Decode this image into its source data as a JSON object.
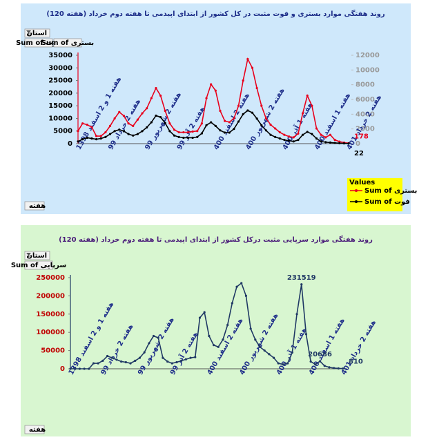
{
  "chart_data": [
    {
      "type": "line",
      "title": "روند هفتگی موارد بستری و فوت مثبت در کل کشور از ابتدای اپیدمی تا هفته دوم خرداد (هفته 120)",
      "title_color": "#1f2f8a",
      "background": "#cfe8fb",
      "categories": [
        "هفته 1 و 2 اسفند 1398",
        null,
        null,
        null,
        null,
        null,
        null,
        "هفته 2 خرداد 99",
        null,
        null,
        null,
        null,
        null,
        null,
        null,
        "هفته 2 شهریور 99",
        null,
        null,
        null,
        null,
        null,
        null,
        "هفته 2 آذر 99",
        null,
        null,
        null,
        null,
        null,
        null,
        null,
        "هفته 2 اسفند 400",
        null,
        null,
        null,
        null,
        null,
        null,
        "هفته 2 شهریور 400",
        null,
        null,
        null,
        null,
        null,
        null,
        null,
        "هفته 1 آذر 400",
        null,
        null,
        null,
        null,
        null,
        null,
        "هفته 1 اسفند 400",
        null,
        null,
        null,
        null,
        null,
        null,
        "هفته 2 خرداد 401"
      ],
      "series": [
        {
          "name": "Sum of بستری",
          "color": "#e8001c",
          "data_labels": [
            59
          ],
          "values": [
            5000,
            8000,
            7500,
            6500,
            3000,
            3000,
            4500,
            7000,
            10000,
            12500,
            11000,
            8000,
            7000,
            9500,
            12000,
            14000,
            18000,
            22000,
            19000,
            13000,
            8000,
            5500,
            4500,
            4500,
            4500,
            4800,
            5000,
            8000,
            18000,
            23500,
            21000,
            13000,
            9000,
            8500,
            10000,
            15000,
            25000,
            33500,
            30000,
            22000,
            15000,
            10000,
            7500,
            6000,
            4500,
            3500,
            2800,
            2500,
            4000,
            12000,
            19000,
            15000,
            6000,
            3500,
            2500,
            3500,
            1500,
            800,
            400,
            178
          ]
        },
        {
          "name": "Sum of فوت",
          "color": "#000000",
          "axis": "y2",
          "data_labels": [
            59
          ],
          "values": [
            300,
            600,
            800,
            700,
            600,
            700,
            900,
            1300,
            1700,
            1900,
            1700,
            1300,
            1100,
            1300,
            1700,
            2200,
            2900,
            3800,
            3600,
            2800,
            1700,
            1100,
            900,
            800,
            800,
            800,
            900,
            1400,
            2500,
            2900,
            2400,
            1800,
            1500,
            1500,
            2000,
            3000,
            4000,
            4500,
            4200,
            3400,
            2500,
            1800,
            1200,
            900,
            700,
            500,
            400,
            300,
            500,
            1200,
            1600,
            1300,
            700,
            300,
            200,
            150,
            100,
            60,
            35,
            22
          ]
        }
      ],
      "ylim": [
        0,
        35000
      ],
      "yticks": [
        0,
        5000,
        10000,
        15000,
        20000,
        25000,
        30000,
        35000
      ],
      "y2lim": [
        0,
        12000
      ],
      "y2ticks": [
        0,
        2000,
        4000,
        6000,
        8000,
        10000,
        12000
      ],
      "grid": false,
      "legend": "bottom-right",
      "legend_title": "Values",
      "filter_button": "استان",
      "value_buttons": [
        "Sum of فوت",
        "Sum of بستری"
      ],
      "axis_button": "هفته"
    },
    {
      "type": "line",
      "title": "روند هفتگی موارد سرپایی مثبت درکل کشور از ابتدای اپیدمی تا هفته دوم خرداد (هفته 120)",
      "title_color": "#4b1d7a",
      "background": "#d8f6d0",
      "categories": [
        "هفته 1 و 2 اسفند 1398",
        null,
        null,
        null,
        null,
        null,
        null,
        "هفته 2 خرداد 99",
        null,
        null,
        null,
        null,
        null,
        null,
        null,
        "هفته 2 شهریور 99",
        null,
        null,
        null,
        null,
        null,
        null,
        "هفته 2 آذر 99",
        null,
        null,
        null,
        null,
        null,
        null,
        null,
        "هفته 2 اسفند 400",
        null,
        null,
        null,
        null,
        null,
        null,
        "هفته 2 شهریور 400",
        null,
        null,
        null,
        null,
        null,
        null,
        null,
        "هفته 1 آذر 400",
        null,
        null,
        null,
        null,
        null,
        null,
        "هفته 1 اسفند 400",
        null,
        null,
        null,
        null,
        null,
        null,
        "هفته 2 خرداد 401"
      ],
      "series": [
        {
          "name": "Sum of سرپایی",
          "color": "#1f3864",
          "data_labels": [
            50,
            54,
            59
          ],
          "values": [
            0,
            0,
            0,
            0,
            0,
            15000,
            15000,
            22000,
            35000,
            30000,
            25000,
            20000,
            18000,
            15000,
            22000,
            30000,
            45000,
            70000,
            90000,
            85000,
            30000,
            20000,
            15000,
            18000,
            22000,
            26000,
            30000,
            32000,
            140000,
            155000,
            90000,
            65000,
            60000,
            80000,
            120000,
            180000,
            225000,
            235000,
            200000,
            110000,
            80000,
            60000,
            50000,
            40000,
            30000,
            15000,
            12000,
            15000,
            45000,
            150000,
            231519,
            95000,
            20000,
            12000,
            20686,
            8000,
            4000,
            2000,
            1000,
            810
          ]
        }
      ],
      "ylim": [
        0,
        250000
      ],
      "yticks": [
        0,
        50000,
        100000,
        150000,
        200000,
        250000
      ],
      "grid": false,
      "filter_button": "استان",
      "value_buttons": [
        "Sum of سرپایی"
      ],
      "axis_button": "هفته"
    }
  ]
}
